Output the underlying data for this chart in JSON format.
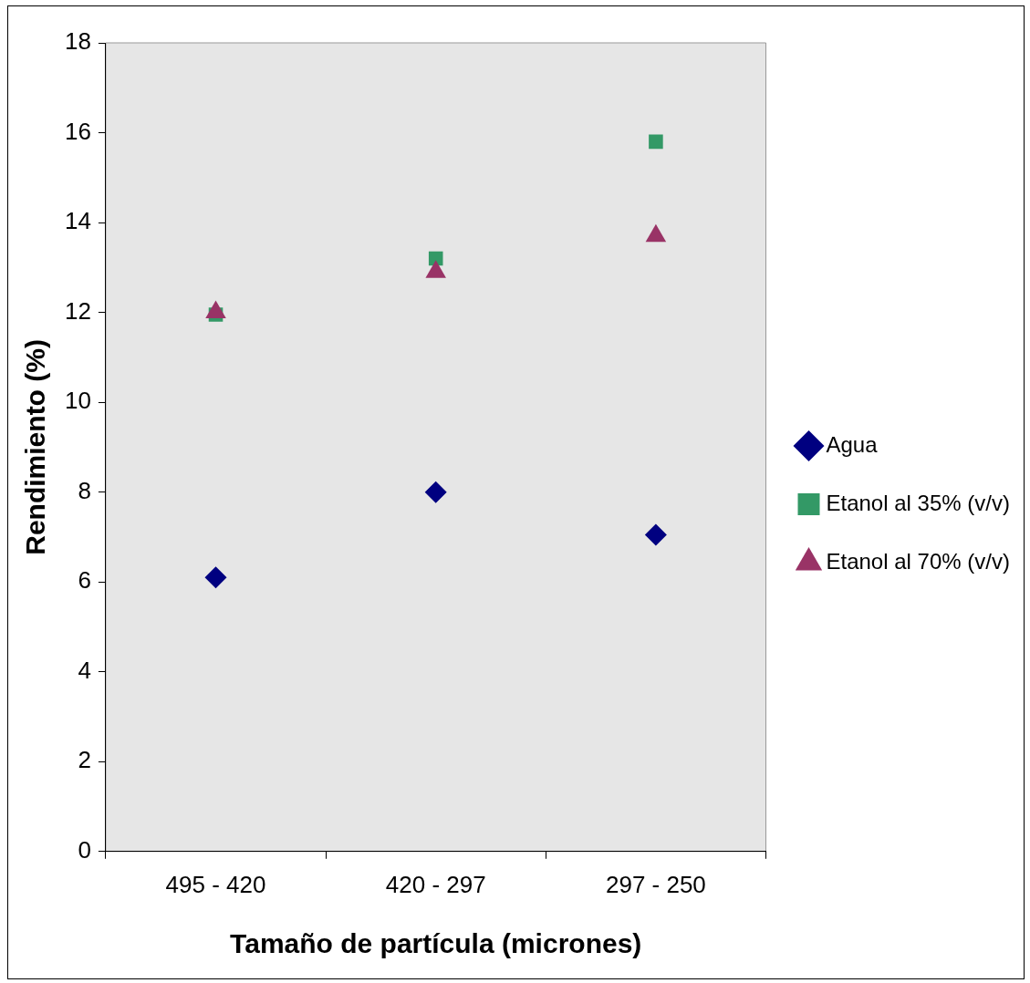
{
  "chart_data": {
    "type": "scatter",
    "xlabel": "Tamaño de partícula (micrones)",
    "ylabel": "Rendimiento (%)",
    "categories": [
      "495 - 420",
      "420 - 297",
      "297 - 250"
    ],
    "ylim": [
      0,
      18
    ],
    "yticks": [
      0,
      2,
      4,
      6,
      8,
      10,
      12,
      14,
      16,
      18
    ],
    "grid": false,
    "legend": "right",
    "series": [
      {
        "name": "Agua",
        "color": "#000080",
        "marker": "diamond",
        "values": [
          6.1,
          8.0,
          7.05
        ]
      },
      {
        "name": "Etanol al 35% (v/v)",
        "color": "#339966",
        "marker": "square",
        "values": [
          11.95,
          13.2,
          15.8
        ]
      },
      {
        "name": "Etanol al 70% (v/v)",
        "color": "#993366",
        "marker": "triangle",
        "values": [
          12.0,
          12.9,
          13.7
        ]
      }
    ]
  }
}
